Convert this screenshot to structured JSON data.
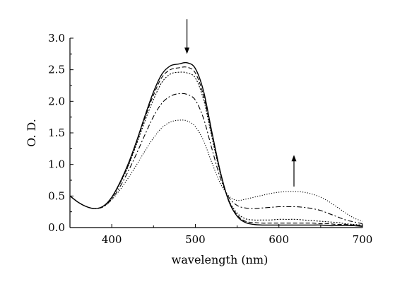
{
  "chart_data": {
    "type": "line",
    "xlabel": "wavelength (nm)",
    "ylabel": "O. D.",
    "xlim": [
      350,
      700
    ],
    "ylim": [
      0,
      3.0
    ],
    "x_ticks": [
      400,
      500,
      600,
      700
    ],
    "y_ticks": [
      "0.0",
      "0.5",
      "1.0",
      "1.5",
      "2.0",
      "2.5",
      "3.0"
    ],
    "y_tick_values": [
      0,
      0.5,
      1.0,
      1.5,
      2.0,
      2.5,
      3.0
    ],
    "grid": false,
    "legend": "none",
    "annotations": [
      {
        "type": "arrow",
        "direction": "down",
        "x": 490,
        "y_from": 3.3,
        "y_to": 2.75
      },
      {
        "type": "arrow",
        "direction": "up",
        "x": 618,
        "y_from": 0.65,
        "y_to": 1.15
      }
    ],
    "x": [
      350,
      360,
      370,
      380,
      390,
      400,
      410,
      420,
      430,
      440,
      450,
      460,
      470,
      480,
      490,
      500,
      510,
      520,
      530,
      540,
      550,
      560,
      570,
      580,
      590,
      600,
      610,
      620,
      630,
      640,
      650,
      660,
      670,
      680,
      690,
      700
    ],
    "series": [
      {
        "style": "solid",
        "values": [
          0.5,
          0.4,
          0.33,
          0.3,
          0.34,
          0.48,
          0.72,
          1.02,
          1.38,
          1.78,
          2.15,
          2.43,
          2.56,
          2.59,
          2.61,
          2.52,
          2.15,
          1.5,
          0.88,
          0.42,
          0.18,
          0.08,
          0.05,
          0.04,
          0.04,
          0.04,
          0.04,
          0.04,
          0.04,
          0.04,
          0.04,
          0.03,
          0.03,
          0.03,
          0.03,
          0.02
        ]
      },
      {
        "style": "dashed",
        "values": [
          0.5,
          0.4,
          0.33,
          0.3,
          0.34,
          0.48,
          0.71,
          1.0,
          1.36,
          1.75,
          2.1,
          2.38,
          2.5,
          2.53,
          2.54,
          2.45,
          2.08,
          1.46,
          0.86,
          0.43,
          0.2,
          0.1,
          0.08,
          0.07,
          0.07,
          0.07,
          0.07,
          0.07,
          0.07,
          0.07,
          0.06,
          0.06,
          0.05,
          0.05,
          0.04,
          0.03
        ]
      },
      {
        "style": "dotted",
        "values": [
          0.5,
          0.4,
          0.33,
          0.3,
          0.34,
          0.47,
          0.7,
          0.98,
          1.33,
          1.7,
          2.03,
          2.3,
          2.43,
          2.46,
          2.45,
          2.37,
          2.02,
          1.42,
          0.85,
          0.44,
          0.23,
          0.14,
          0.12,
          0.12,
          0.12,
          0.13,
          0.13,
          0.13,
          0.12,
          0.11,
          0.1,
          0.09,
          0.08,
          0.06,
          0.05,
          0.04
        ]
      },
      {
        "style": "dashdot",
        "values": [
          0.5,
          0.4,
          0.33,
          0.3,
          0.33,
          0.45,
          0.65,
          0.9,
          1.18,
          1.48,
          1.76,
          1.97,
          2.08,
          2.12,
          2.11,
          2.02,
          1.72,
          1.24,
          0.78,
          0.48,
          0.35,
          0.31,
          0.3,
          0.31,
          0.32,
          0.33,
          0.33,
          0.33,
          0.32,
          0.3,
          0.27,
          0.22,
          0.17,
          0.12,
          0.09,
          0.06
        ]
      },
      {
        "style": "finedot",
        "values": [
          0.5,
          0.4,
          0.33,
          0.3,
          0.33,
          0.44,
          0.6,
          0.79,
          1.0,
          1.22,
          1.42,
          1.58,
          1.67,
          1.7,
          1.69,
          1.6,
          1.37,
          1.02,
          0.7,
          0.5,
          0.43,
          0.45,
          0.48,
          0.51,
          0.54,
          0.56,
          0.57,
          0.57,
          0.56,
          0.53,
          0.48,
          0.41,
          0.32,
          0.23,
          0.15,
          0.1
        ]
      }
    ]
  }
}
